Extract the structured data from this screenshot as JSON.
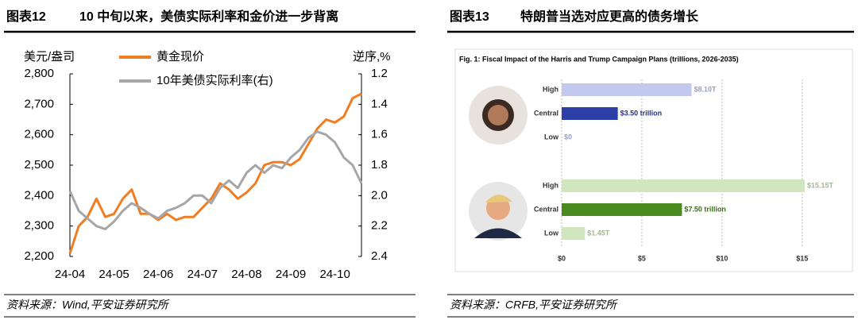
{
  "chart_data": [
    {
      "type": "line",
      "label": "图表12",
      "title": "10 中旬以来，美债实际利率和金价进一步背离",
      "ylabel": "美元/盎司",
      "y2label": "逆序,%",
      "source": "资料来源：Wind,平安证券研究所",
      "x": [
        "24-04",
        null,
        null,
        null,
        null,
        "24-05",
        null,
        null,
        null,
        null,
        "24-06",
        null,
        null,
        null,
        null,
        "24-07",
        null,
        null,
        null,
        null,
        "24-08",
        null,
        null,
        null,
        null,
        "24-09",
        null,
        null,
        null,
        null,
        "24-10",
        null,
        null,
        null
      ],
      "ylim": [
        2200,
        2800
      ],
      "yticks": [
        {
          "value": 2200,
          "label": "2,200"
        },
        {
          "value": 2300,
          "label": "2,300"
        },
        {
          "value": 2400,
          "label": "2,400"
        },
        {
          "value": 2500,
          "label": "2,500"
        },
        {
          "value": 2600,
          "label": "2,600"
        },
        {
          "value": 2700,
          "label": "2,700"
        },
        {
          "value": 2800,
          "label": "2,800"
        }
      ],
      "y2lim": [
        1.2,
        2.4
      ],
      "y2_inverted": true,
      "y2ticks": [
        1.2,
        1.4,
        1.6,
        1.8,
        {
          "value": 2,
          "label": "2.0"
        },
        2.2,
        2.4
      ],
      "series": [
        {
          "name": "黄金现价",
          "color": "#f07d22",
          "values": [
            2210,
            2300,
            2330,
            2390,
            2330,
            2340,
            2390,
            2420,
            2340,
            2340,
            2320,
            2340,
            2320,
            2330,
            2330,
            2360,
            2390,
            2440,
            2420,
            2390,
            2410,
            2440,
            2500,
            2510,
            2510,
            2500,
            2520,
            2570,
            2620,
            2650,
            2640,
            2660,
            2720,
            2735
          ]
        },
        {
          "name": "10年美债实际利率(右)",
          "color": "#a6a6a6",
          "axis": "y2",
          "values": [
            1.97,
            2.1,
            2.15,
            2.2,
            2.22,
            2.17,
            2.1,
            2.05,
            2.08,
            2.12,
            2.15,
            2.1,
            2.08,
            2.05,
            2.0,
            2.0,
            2.05,
            1.95,
            1.9,
            1.95,
            1.85,
            1.8,
            1.85,
            1.8,
            1.82,
            1.75,
            1.7,
            1.62,
            1.58,
            1.6,
            1.65,
            1.75,
            1.8,
            1.92
          ]
        }
      ]
    },
    {
      "type": "bar",
      "orientation": "horizontal",
      "label": "图表13",
      "title": "特朗普当选对应更高的债务增长",
      "subtitle": "Fig. 1: Fiscal Impact of the Harris and Trump Campaign Plans (trillions, 2026-2035)",
      "source": "资料来源：CRFB,平安证券研究所",
      "categories": [
        "High",
        "Central",
        "Low"
      ],
      "xlim": [
        0,
        16
      ],
      "xticks": [
        {
          "value": 0,
          "label": "$0"
        },
        {
          "value": 5,
          "label": "$5"
        },
        {
          "value": 10,
          "label": "$10"
        },
        {
          "value": 15,
          "label": "$15"
        }
      ],
      "grid": true,
      "series": [
        {
          "colors": [
            "#c3c9ee",
            "#2c3fa6",
            "#c3c9ee"
          ],
          "values": [
            8.1,
            3.5,
            0
          ],
          "value_labels": [
            "$8.10T",
            "$3.50 trillion",
            "$0"
          ]
        },
        {
          "colors": [
            "#cfe6bf",
            "#4a8a1f",
            "#cfe6bf"
          ],
          "values": [
            15.15,
            7.5,
            1.45
          ],
          "value_labels": [
            "$15.15T",
            "$7.50 trillion",
            "$1.45T"
          ]
        }
      ]
    }
  ]
}
